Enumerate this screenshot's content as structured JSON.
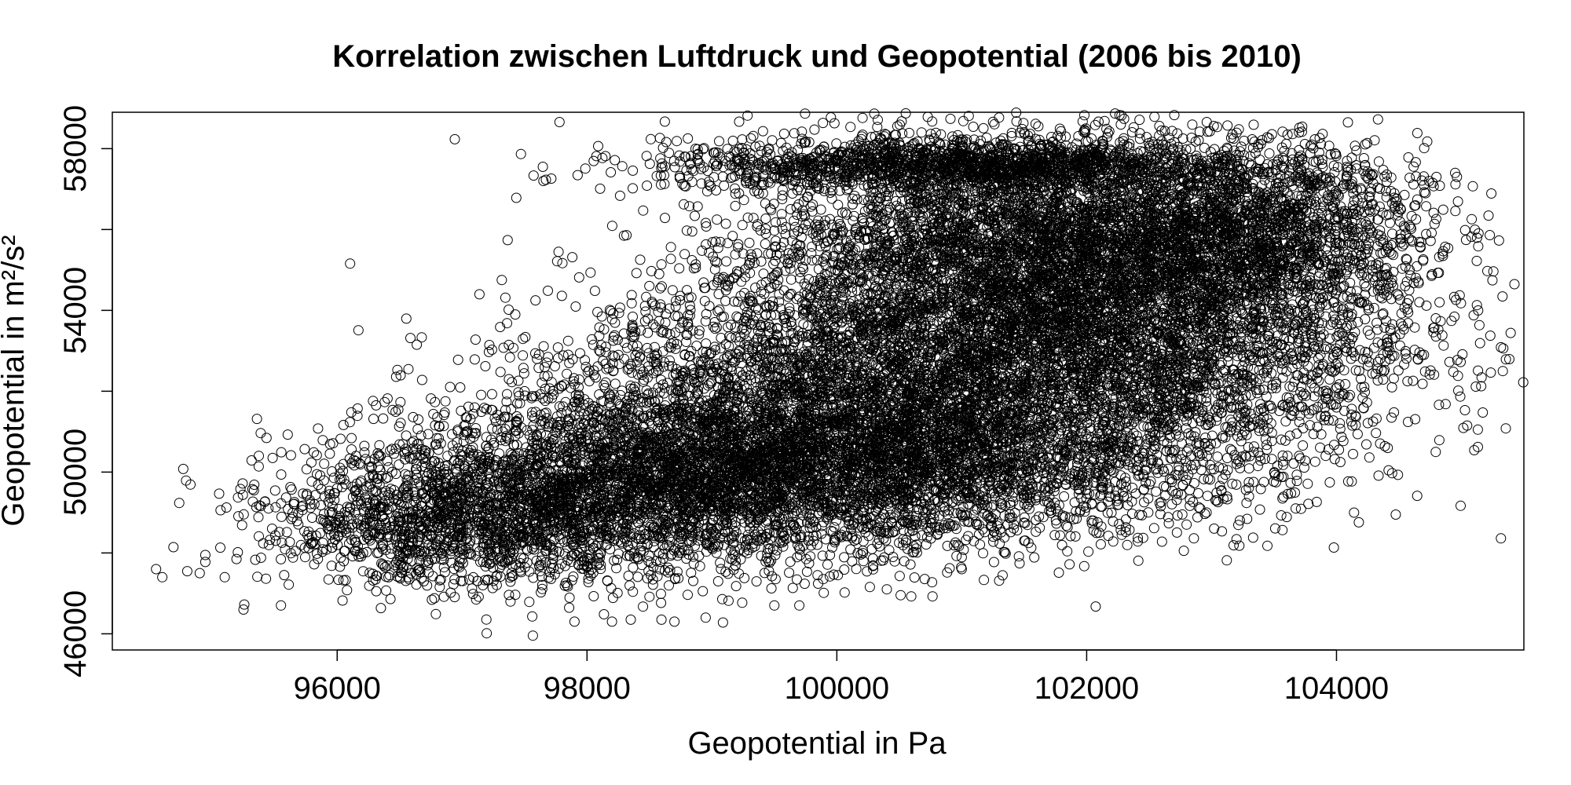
{
  "chart_data": {
    "type": "scatter",
    "title": "Korrelation zwischen Luftdruck und Geopotential (2006 bis 2010)",
    "xlabel": "Geopotential in Pa",
    "ylabel": "Geopotential in m²/s²",
    "xlim": [
      94200,
      105500
    ],
    "ylim": [
      45600,
      58900
    ],
    "x_ticks": [
      96000,
      98000,
      100000,
      102000,
      104000
    ],
    "y_ticks": [
      46000,
      50000,
      54000,
      58000
    ],
    "x_tick_labels": [
      "96000",
      "98000",
      "100000",
      "102000",
      "104000"
    ],
    "y_tick_labels": [
      "46000",
      "50000",
      "54000",
      "58000"
    ],
    "grid": false,
    "marker": "open-circle",
    "color": "#000000",
    "series": [
      {
        "points": [
          [
            94550,
            47600
          ],
          [
            94600,
            47400
          ],
          [
            94800,
            47550
          ],
          [
            94900,
            47500
          ],
          [
            95100,
            47400
          ],
          [
            95250,
            46600
          ],
          [
            95550,
            46700
          ],
          [
            95450,
            49100
          ],
          [
            95900,
            49400
          ],
          [
            96000,
            49600
          ],
          [
            96050,
            50200
          ],
          [
            96150,
            50400
          ],
          [
            96650,
            51300
          ],
          [
            97100,
            51600
          ],
          [
            97500,
            52000
          ],
          [
            97850,
            52900
          ],
          [
            97600,
            52800
          ],
          [
            98150,
            53100
          ],
          [
            98300,
            53200
          ],
          [
            98900,
            53500
          ],
          [
            99300,
            54300
          ],
          [
            99450,
            55400
          ],
          [
            99700,
            55600
          ],
          [
            98800,
            54500
          ],
          [
            97900,
            46300
          ],
          [
            98200,
            46300
          ],
          [
            98350,
            46350
          ],
          [
            98700,
            46300
          ],
          [
            98950,
            46400
          ],
          [
            99500,
            46700
          ],
          [
            99700,
            46700
          ],
          [
            100400,
            47100
          ],
          [
            101000,
            47600
          ],
          [
            101500,
            48300
          ],
          [
            102100,
            48500
          ],
          [
            102800,
            48700
          ],
          [
            103300,
            49400
          ],
          [
            103700,
            50400
          ],
          [
            104000,
            51600
          ],
          [
            104200,
            52100
          ],
          [
            104350,
            52800
          ],
          [
            104450,
            53300
          ],
          [
            104650,
            52800
          ],
          [
            104700,
            52900
          ],
          [
            104550,
            54600
          ],
          [
            104800,
            57300
          ],
          [
            104950,
            57400
          ],
          [
            104700,
            57100
          ],
          [
            104400,
            56800
          ],
          [
            103800,
            58100
          ],
          [
            103700,
            58400
          ],
          [
            101500,
            58400
          ],
          [
            102600,
            58450
          ],
          [
            100200,
            58300
          ],
          [
            99300,
            57200
          ],
          [
            99500,
            57300
          ],
          [
            99400,
            57100
          ]
        ]
      }
    ],
    "density_clusters": [
      {
        "x": 101500,
        "y": 55500,
        "sx": 1100,
        "sy": 1500,
        "n": 4200
      },
      {
        "x": 100500,
        "y": 52000,
        "sx": 1300,
        "sy": 1500,
        "n": 4200
      },
      {
        "x": 99000,
        "y": 50000,
        "sx": 1200,
        "sy": 1100,
        "n": 3000
      },
      {
        "x": 102500,
        "y": 53500,
        "sx": 1100,
        "sy": 1700,
        "n": 3000
      },
      {
        "x": 97500,
        "y": 49000,
        "sx": 900,
        "sy": 900,
        "n": 1500
      },
      {
        "x": 103300,
        "y": 56000,
        "sx": 700,
        "sy": 1000,
        "n": 1500
      },
      {
        "x": 101000,
        "y": 57600,
        "sx": 1200,
        "sy": 300,
        "n": 1500
      },
      {
        "x": 96600,
        "y": 48600,
        "sx": 600,
        "sy": 700,
        "n": 500
      },
      {
        "x": 100400,
        "y": 50000,
        "sx": 1500,
        "sy": 900,
        "n": 1800
      }
    ]
  }
}
